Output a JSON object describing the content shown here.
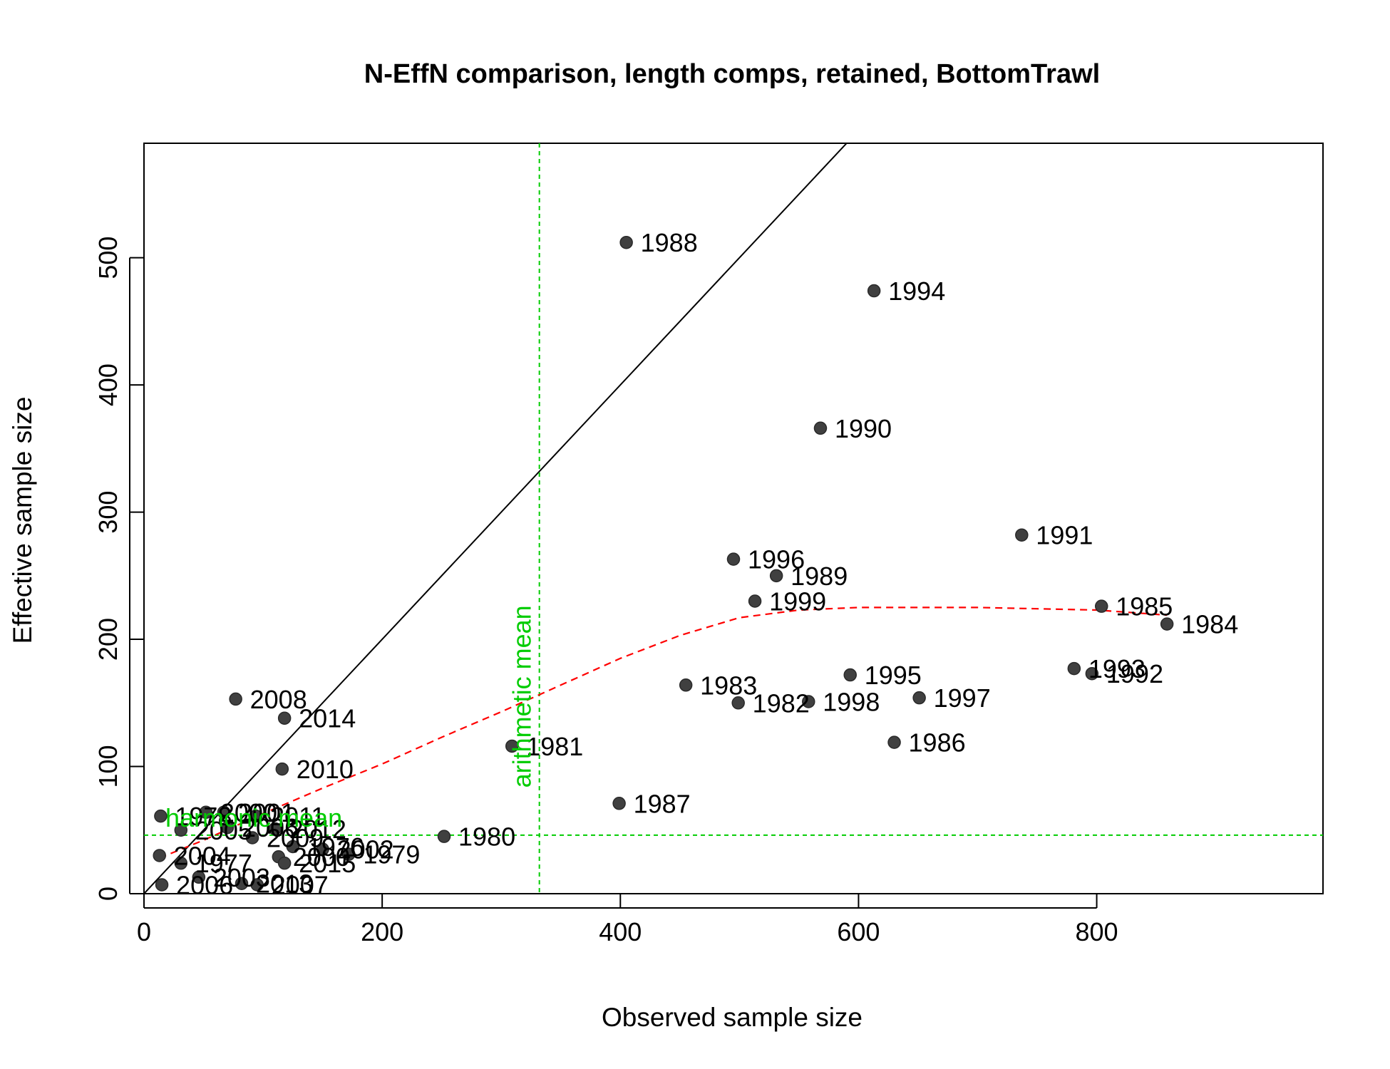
{
  "chart_data": {
    "type": "scatter",
    "title": "N-EffN comparison, length comps, retained, BottomTrawl",
    "xlabel": "Observed sample size",
    "ylabel": "Effective sample size",
    "xlim": [
      0,
      990
    ],
    "ylim": [
      0,
      590
    ],
    "x_ticks": [
      "0",
      "200",
      "400",
      "600",
      "800"
    ],
    "y_ticks": [
      "0",
      "100",
      "200",
      "300",
      "400",
      "500"
    ],
    "grid": false,
    "points": [
      {
        "label": "1988",
        "x": 405,
        "y": 512
      },
      {
        "label": "1994",
        "x": 613,
        "y": 474
      },
      {
        "label": "1990",
        "x": 568,
        "y": 366
      },
      {
        "label": "1991",
        "x": 737,
        "y": 282
      },
      {
        "label": "1996",
        "x": 495,
        "y": 263
      },
      {
        "label": "1989",
        "x": 531,
        "y": 250
      },
      {
        "label": "1999",
        "x": 513,
        "y": 230
      },
      {
        "label": "1985",
        "x": 804,
        "y": 226
      },
      {
        "label": "1984",
        "x": 859,
        "y": 212
      },
      {
        "label": "1993",
        "x": 781,
        "y": 177
      },
      {
        "label": "1992",
        "x": 796,
        "y": 173
      },
      {
        "label": "1995",
        "x": 593,
        "y": 172
      },
      {
        "label": "1983",
        "x": 455,
        "y": 164
      },
      {
        "label": "1997",
        "x": 651,
        "y": 154
      },
      {
        "label": "1998",
        "x": 558,
        "y": 151
      },
      {
        "label": "1982",
        "x": 499,
        "y": 150
      },
      {
        "label": "1986",
        "x": 630,
        "y": 119
      },
      {
        "label": "1981",
        "x": 309,
        "y": 116
      },
      {
        "label": "1987",
        "x": 399,
        "y": 71
      },
      {
        "label": "1980",
        "x": 252,
        "y": 45
      },
      {
        "label": "2008",
        "x": 77,
        "y": 153
      },
      {
        "label": "2014",
        "x": 118,
        "y": 138
      },
      {
        "label": "2010",
        "x": 116,
        "y": 98
      },
      {
        "label": "1978",
        "x": 14,
        "y": 61
      },
      {
        "label": "2000",
        "x": 52,
        "y": 64
      },
      {
        "label": "2001",
        "x": 67,
        "y": 64
      },
      {
        "label": "2011",
        "x": 94,
        "y": 61
      },
      {
        "label": "2005",
        "x": 31,
        "y": 50
      },
      {
        "label": "2006",
        "x": 70,
        "y": 52
      },
      {
        "label": "2012",
        "x": 110,
        "y": 51
      },
      {
        "label": "2009",
        "x": 91,
        "y": 44
      },
      {
        "label": "1976",
        "x": 125,
        "y": 37
      },
      {
        "label": "2002",
        "x": 150,
        "y": 35
      },
      {
        "label": "2004",
        "x": 13,
        "y": 30
      },
      {
        "label": "1977",
        "x": 31,
        "y": 24
      },
      {
        "label": "2000",
        "x": 113,
        "y": 29
      },
      {
        "label": "1979",
        "x": 172,
        "y": 31
      },
      {
        "label": "2015",
        "x": 118,
        "y": 24
      },
      {
        "label": "2003",
        "x": 46,
        "y": 13
      },
      {
        "label": "2013",
        "x": 82,
        "y": 8
      },
      {
        "label": "2007",
        "x": 95,
        "y": 7
      },
      {
        "label": "2006",
        "x": 15,
        "y": 7
      }
    ],
    "loess": {
      "color": "#FF0000",
      "x": [
        13,
        50,
        100,
        150,
        200,
        250,
        300,
        350,
        400,
        450,
        500,
        550,
        600,
        650,
        700,
        750,
        800,
        859
      ],
      "y": [
        28,
        42,
        63,
        83,
        102,
        123,
        143,
        164,
        185,
        203,
        217,
        223,
        225,
        225,
        225,
        224,
        223,
        219
      ]
    },
    "reference_line": {
      "slope": 1,
      "intercept": 0,
      "color": "#000000"
    },
    "harmonic_mean": {
      "label": "harmonic mean",
      "value": 46,
      "color": "#00CC00"
    },
    "arithmetic_mean": {
      "label": "arithmetic mean",
      "value": 332,
      "color": "#00CC00"
    },
    "point_color": "#404040"
  }
}
